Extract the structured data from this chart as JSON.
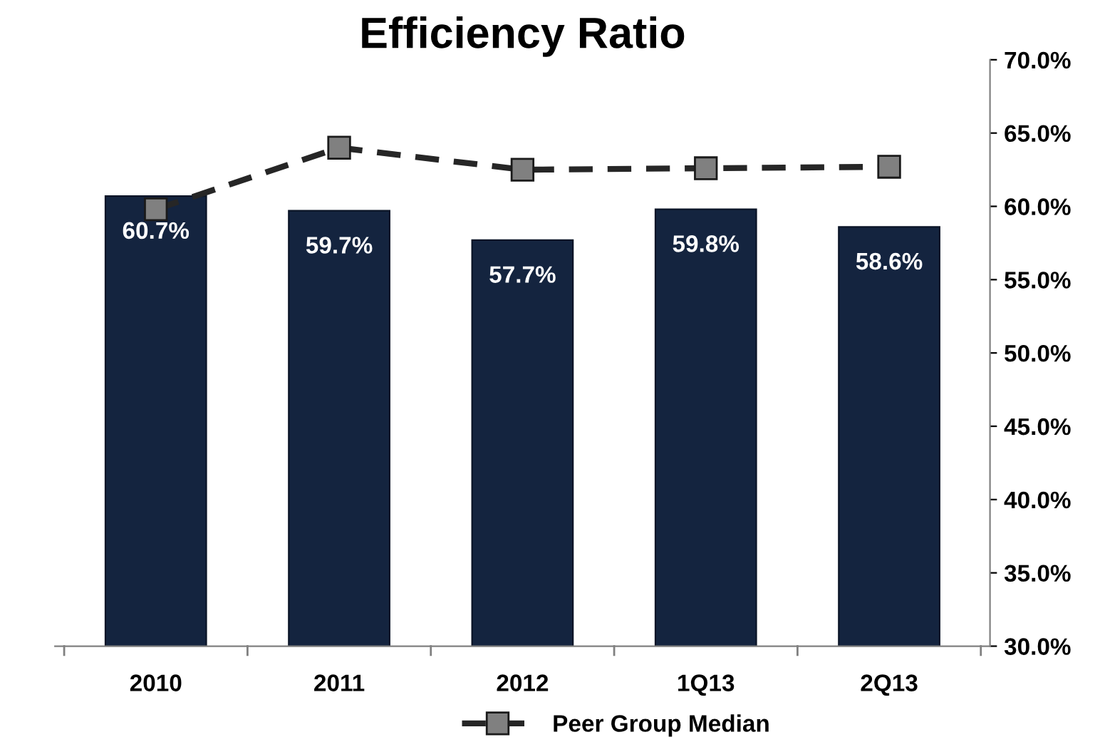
{
  "chart_data": {
    "type": "bar",
    "title": "Efficiency Ratio",
    "categories": [
      "2010",
      "2011",
      "2012",
      "1Q13",
      "2Q13"
    ],
    "series": [
      {
        "color": "#14243f",
        "values": [
          60.7,
          59.7,
          57.7,
          59.8,
          58.6
        ],
        "value_labels": [
          "60.7%",
          "59.7%",
          "57.7%",
          "59.8%",
          "58.6%"
        ]
      },
      {
        "type": "line",
        "name": "Peer Group Median",
        "color": "#262626",
        "values": [
          59.8,
          64.0,
          62.5,
          62.6,
          62.7
        ],
        "marker": "square",
        "line_style": "dashed"
      }
    ],
    "ylim": [
      30,
      70
    ],
    "yticks": [
      {
        "value": 30,
        "label": "30.0%"
      },
      {
        "value": 35,
        "label": "35.0%"
      },
      {
        "value": 40,
        "label": "40.0%"
      },
      {
        "value": 45,
        "label": "45.0%"
      },
      {
        "value": 50,
        "label": "50.0%"
      },
      {
        "value": 55,
        "label": "55.0%"
      },
      {
        "value": 60,
        "label": "60.0%"
      },
      {
        "value": 65,
        "label": "65.0%"
      },
      {
        "value": 70,
        "label": "70.0%"
      }
    ],
    "grid": false,
    "legend": "bottom"
  }
}
